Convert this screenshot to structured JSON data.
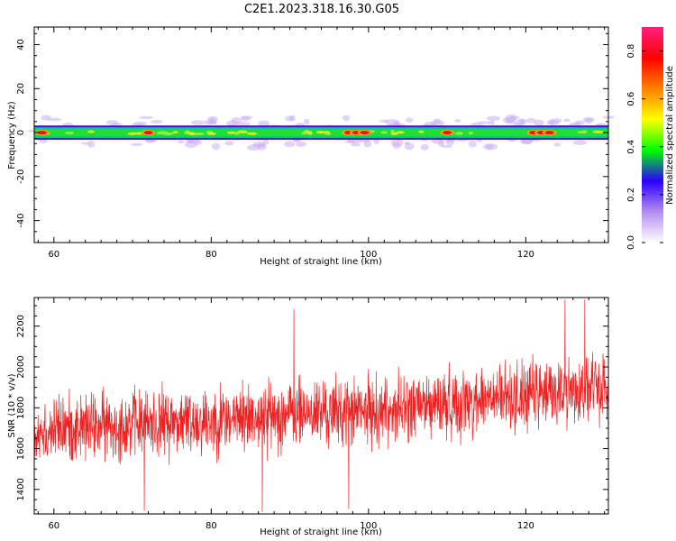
{
  "figure": {
    "title": "C2E1.2023.318.16.30.G05"
  },
  "chart_data": [
    {
      "type": "heatmap",
      "title": "",
      "xlabel": "Height of straight line (km)",
      "ylabel": "Frequency (Hz)",
      "xlim": [
        57.5,
        130.5
      ],
      "ylim": [
        -50,
        48
      ],
      "xticks": [
        60,
        80,
        100,
        120
      ],
      "yticks": [
        -40,
        -20,
        0,
        20,
        40
      ],
      "grid": false,
      "band": {
        "center_hz": 0,
        "core_halfwidth_hz": 2,
        "halo_halfwidth_hz": 7,
        "hotspots_km": [
          58.5,
          72,
          97.5,
          98.5,
          99.5,
          110,
          121,
          122,
          123
        ]
      },
      "colorbar": {
        "label": "Normalized spectral amplitude",
        "range": [
          0.0,
          0.9
        ],
        "ticks": [
          "0.0",
          "0.2",
          "0.4",
          "0.6",
          "0.8"
        ],
        "tick_values": [
          0,
          0.2,
          0.4,
          0.6,
          0.8
        ],
        "colors": [
          "#ffffff",
          "#b48cf0",
          "#2a00ff",
          "#00ff00",
          "#ffff00",
          "#ff8000",
          "#ff0000",
          "#ff2080"
        ]
      }
    },
    {
      "type": "line",
      "title": "",
      "xlabel": "Height of straight line (km)",
      "ylabel": "SNR (10 * v/v)",
      "xlim": [
        57.5,
        130.5
      ],
      "ylim": [
        1280,
        2340
      ],
      "xticks": [
        60,
        80,
        100,
        120
      ],
      "yticks": [
        1400,
        1600,
        1800,
        2000,
        2200
      ],
      "grid": false,
      "color": "#ee2222",
      "trend": [
        {
          "x": 57.5,
          "y": 1690
        },
        {
          "x": 70,
          "y": 1720
        },
        {
          "x": 80,
          "y": 1740
        },
        {
          "x": 90,
          "y": 1770
        },
        {
          "x": 100,
          "y": 1780
        },
        {
          "x": 110,
          "y": 1820
        },
        {
          "x": 120,
          "y": 1860
        },
        {
          "x": 130.5,
          "y": 1900
        }
      ],
      "spikes": [
        {
          "x": 90.5,
          "y": 2285
        },
        {
          "x": 125,
          "y": 2330
        },
        {
          "x": 127.5,
          "y": 2330
        },
        {
          "x": 71.5,
          "y": 1295
        },
        {
          "x": 86.5,
          "y": 1290
        },
        {
          "x": 97.5,
          "y": 1305
        }
      ],
      "noise_spread": 150
    }
  ]
}
